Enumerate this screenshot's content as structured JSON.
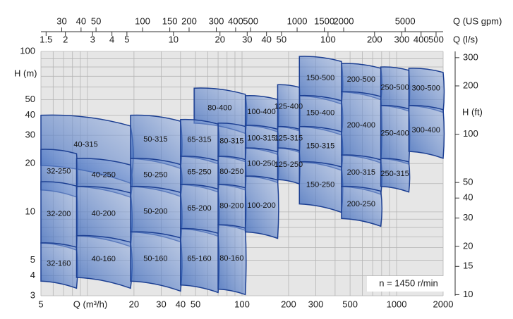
{
  "chart_data": {
    "type": "tiles",
    "log": true,
    "xlabel": "Q (m³/h)",
    "ylabel": "H (m)",
    "y2label": "H (ft)",
    "annotation": "n = 1450 r/min",
    "xlim": [
      5,
      2000
    ],
    "ylim": [
      3,
      100
    ],
    "xticks": [
      5,
      20,
      30,
      40,
      50,
      100,
      200,
      300,
      500,
      1000,
      2000
    ],
    "yticks": [
      3,
      4,
      5,
      10,
      20,
      30,
      40,
      50,
      100
    ],
    "xgrid": [
      5,
      6,
      7,
      8,
      9,
      10,
      20,
      30,
      40,
      50,
      60,
      70,
      80,
      90,
      100,
      200,
      300,
      400,
      500,
      600,
      700,
      800,
      900,
      1000,
      2000
    ],
    "ygrid": [
      3,
      4,
      5,
      6,
      7,
      8,
      9,
      10,
      15,
      20,
      30,
      40,
      50,
      60,
      70,
      80,
      90,
      100
    ],
    "y2lim": [
      9.84,
      328.1
    ],
    "y2ticks": [
      10,
      15,
      20,
      30,
      40,
      50,
      100,
      200,
      300
    ],
    "top_axes": [
      {
        "label": "Q (US gpm)",
        "lim": [
          22.0,
          8806
        ],
        "ticks": [
          30,
          40,
          50,
          100,
          150,
          200,
          300,
          400,
          500,
          1000,
          1500,
          2000,
          5000
        ]
      },
      {
        "label": "Q (l/s)",
        "lim": [
          1.389,
          555.6
        ],
        "ticks": [
          1.5,
          2,
          3,
          4,
          5,
          10,
          20,
          30,
          40,
          50,
          100,
          200,
          300,
          400,
          500
        ]
      }
    ],
    "tiles": [
      {
        "name": "40-315",
        "q": [
          5,
          19
        ],
        "h": [
          19.5,
          40
        ]
      },
      {
        "name": "32-250",
        "q": [
          5,
          8.5
        ],
        "h": [
          13.7,
          24.5
        ]
      },
      {
        "name": "32-200",
        "q": [
          5,
          8.5
        ],
        "h": [
          6.4,
          15.4
        ]
      },
      {
        "name": "32-160",
        "q": [
          5,
          8.5
        ],
        "h": [
          3.7,
          6.4
        ]
      },
      {
        "name": "40-250",
        "q": [
          8.5,
          19
        ],
        "h": [
          14.4,
          21.5
        ]
      },
      {
        "name": "40-200",
        "q": [
          8.5,
          19
        ],
        "h": [
          7.1,
          14.4
        ]
      },
      {
        "name": "40-160",
        "q": [
          8.5,
          19
        ],
        "h": [
          3.9,
          7.1
        ]
      },
      {
        "name": "50-315",
        "q": [
          19,
          40
        ],
        "h": [
          21.5,
          40
        ]
      },
      {
        "name": "50-250",
        "q": [
          19,
          40
        ],
        "h": [
          14.4,
          21.5
        ]
      },
      {
        "name": "50-200",
        "q": [
          19,
          40
        ],
        "h": [
          7.5,
          14.4
        ]
      },
      {
        "name": "50-160",
        "q": [
          19,
          40
        ],
        "h": [
          3.7,
          7.5
        ]
      },
      {
        "name": "80-400",
        "q": [
          49,
          105
        ],
        "h": [
          35.7,
          59
        ]
      },
      {
        "name": "65-315",
        "q": [
          40,
          70
        ],
        "h": [
          22.2,
          37.6
        ]
      },
      {
        "name": "65-250",
        "q": [
          40,
          70
        ],
        "h": [
          14.8,
          22.2
        ]
      },
      {
        "name": "65-200",
        "q": [
          40,
          70
        ],
        "h": [
          7.85,
          14.8
        ]
      },
      {
        "name": "65-160",
        "q": [
          40,
          70
        ],
        "h": [
          3.5,
          7.85
        ]
      },
      {
        "name": "80-315",
        "q": [
          70,
          105
        ],
        "h": [
          22.2,
          35.7
        ]
      },
      {
        "name": "80-250",
        "q": [
          70,
          105
        ],
        "h": [
          14.8,
          22.2
        ]
      },
      {
        "name": "80-200",
        "q": [
          70,
          105
        ],
        "h": [
          8.3,
          14.8
        ]
      },
      {
        "name": "80-160",
        "q": [
          70,
          105
        ],
        "h": [
          3.3,
          8.3
        ]
      },
      {
        "name": "100-400",
        "q": [
          105,
          170
        ],
        "h": [
          34.6,
          53
        ]
      },
      {
        "name": "100-315",
        "q": [
          105,
          170
        ],
        "h": [
          25,
          34.6
        ]
      },
      {
        "name": "100-250",
        "q": [
          105,
          170
        ],
        "h": [
          16.7,
          25
        ]
      },
      {
        "name": "100-200",
        "q": [
          105,
          170
        ],
        "h": [
          7.5,
          16.7
        ]
      },
      {
        "name": "125-400",
        "q": [
          170,
          235
        ],
        "h": [
          34,
          62
        ]
      },
      {
        "name": "125-315",
        "q": [
          170,
          235
        ],
        "h": [
          25,
          34
        ]
      },
      {
        "name": "125-250",
        "q": [
          170,
          235
        ],
        "h": [
          15.9,
          25
        ]
      },
      {
        "name": "150-500",
        "q": [
          235,
          440
        ],
        "h": [
          53,
          93
        ]
      },
      {
        "name": "150-400",
        "q": [
          235,
          440
        ],
        "h": [
          34,
          53
        ]
      },
      {
        "name": "150-315",
        "q": [
          235,
          440
        ],
        "h": [
          20.5,
          34
        ]
      },
      {
        "name": "150-250",
        "q": [
          235,
          440
        ],
        "h": [
          11.2,
          20.5
        ]
      },
      {
        "name": "200-500",
        "q": [
          440,
          790
        ],
        "h": [
          56,
          84
        ]
      },
      {
        "name": "200-400",
        "q": [
          440,
          790
        ],
        "h": [
          22.6,
          56
        ]
      },
      {
        "name": "200-315",
        "q": [
          440,
          790
        ],
        "h": [
          14.4,
          22.6
        ]
      },
      {
        "name": "200-250",
        "q": [
          440,
          790
        ],
        "h": [
          9.1,
          14.4
        ]
      },
      {
        "name": "250-500",
        "q": [
          790,
          1200
        ],
        "h": [
          46,
          80
        ]
      },
      {
        "name": "250-400",
        "q": [
          790,
          1200
        ],
        "h": [
          21.5,
          46
        ]
      },
      {
        "name": "250-315",
        "q": [
          790,
          1200
        ],
        "h": [
          14.4,
          21.5
        ]
      },
      {
        "name": "300-500",
        "q": [
          1200,
          2000
        ],
        "h": [
          46,
          78.5
        ]
      },
      {
        "name": "300-400",
        "q": [
          1200,
          2000
        ],
        "h": [
          23.8,
          46
        ]
      }
    ]
  }
}
